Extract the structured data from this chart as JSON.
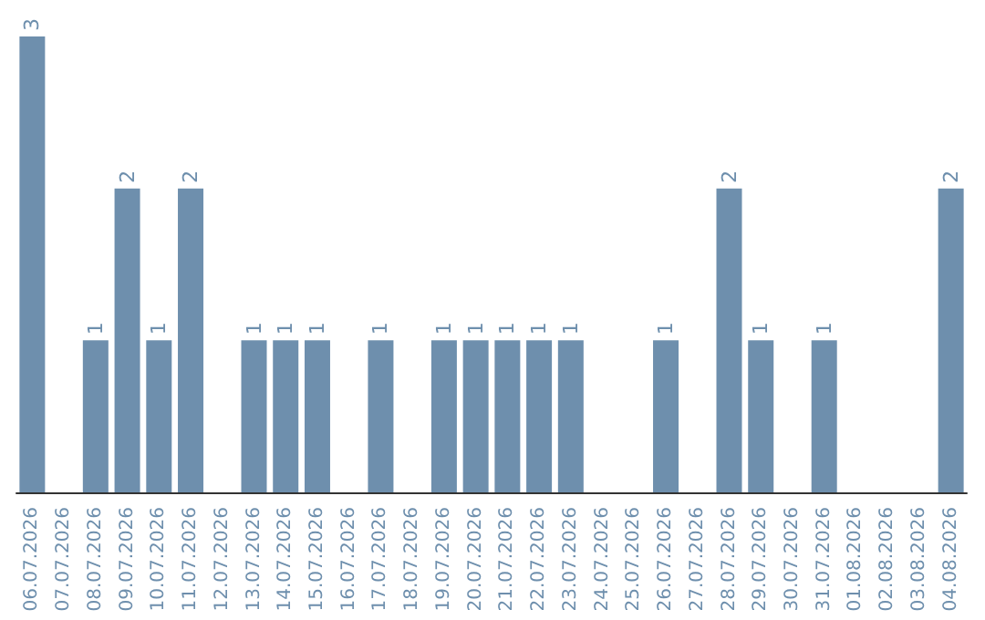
{
  "chart_data": {
    "type": "bar",
    "categories": [
      "06.07.2026",
      "07.07.2026",
      "08.07.2026",
      "09.07.2026",
      "10.07.2026",
      "11.07.2026",
      "12.07.2026",
      "13.07.2026",
      "14.07.2026",
      "15.07.2026",
      "16.07.2026",
      "17.07.2026",
      "18.07.2026",
      "19.07.2026",
      "20.07.2026",
      "21.07.2026",
      "22.07.2026",
      "23.07.2026",
      "24.07.2026",
      "25.07.2026",
      "26.07.2026",
      "27.07.2026",
      "28.07.2026",
      "29.07.2026",
      "30.07.2026",
      "31.07.2026",
      "01.08.2026",
      "02.08.2026",
      "03.08.2026",
      "04.08.2026"
    ],
    "values": [
      3,
      0,
      1,
      2,
      1,
      2,
      0,
      1,
      1,
      1,
      0,
      1,
      0,
      1,
      1,
      1,
      1,
      1,
      0,
      0,
      1,
      0,
      2,
      1,
      0,
      1,
      0,
      0,
      0,
      2
    ],
    "value_labels": [
      "3",
      null,
      "1",
      "2",
      "1",
      "2",
      null,
      "1",
      "1",
      "1",
      null,
      "1",
      null,
      "1",
      "1",
      "1",
      "1",
      "1",
      null,
      null,
      "1",
      null,
      "2",
      "1",
      null,
      "1",
      null,
      null,
      null,
      "2"
    ],
    "color": "#6e8fad"
  }
}
